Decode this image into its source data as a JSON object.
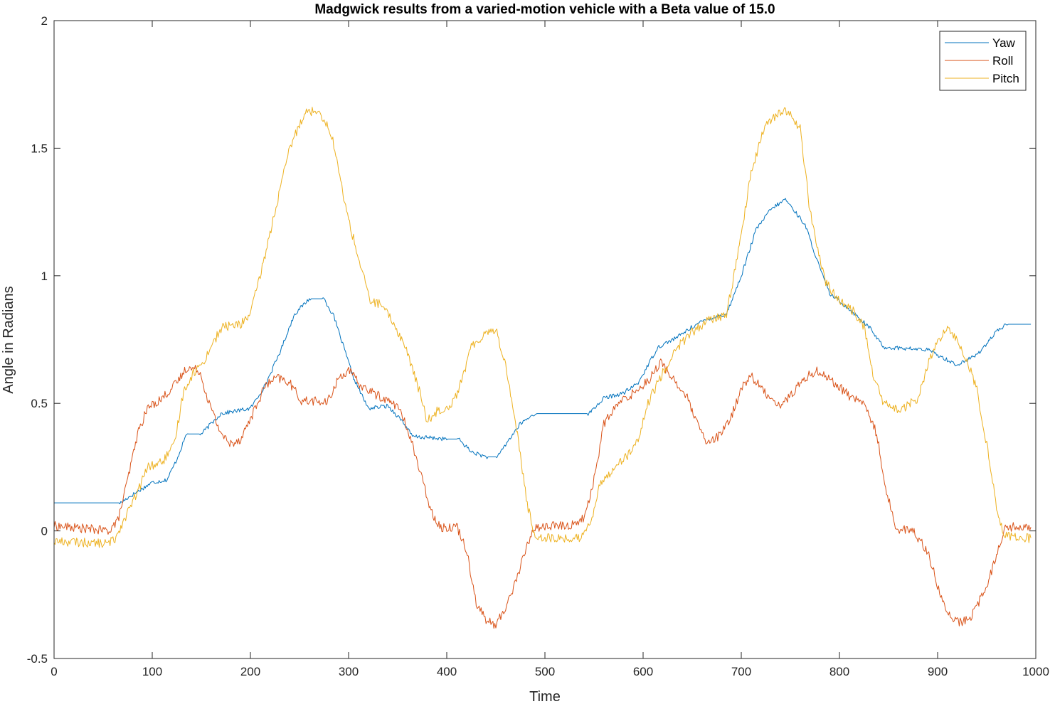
{
  "chart_data": {
    "type": "line",
    "title": "Madgwick results from a varied-motion vehicle with a Beta value of 15.0",
    "xlabel": "Time",
    "ylabel": "Angle in Radians",
    "xlim": [
      0,
      1000
    ],
    "ylim": [
      -0.5,
      2
    ],
    "xticks": [
      0,
      100,
      200,
      300,
      400,
      500,
      600,
      700,
      800,
      900,
      1000
    ],
    "yticks": [
      -0.5,
      0,
      0.5,
      1,
      1.5,
      2
    ],
    "ytick_labels": [
      "-0.5",
      "0",
      "0.5",
      "1",
      "1.5",
      "2"
    ],
    "legend_position": "top-right",
    "series": [
      {
        "name": "Yaw",
        "color": "#0072BD",
        "noise": 0.008,
        "points": [
          [
            0,
            0.11
          ],
          [
            68,
            0.11
          ],
          [
            75,
            0.13
          ],
          [
            100,
            0.19
          ],
          [
            115,
            0.2
          ],
          [
            125,
            0.28
          ],
          [
            135,
            0.38
          ],
          [
            150,
            0.38
          ],
          [
            170,
            0.46
          ],
          [
            200,
            0.48
          ],
          [
            215,
            0.57
          ],
          [
            230,
            0.7
          ],
          [
            245,
            0.85
          ],
          [
            260,
            0.91
          ],
          [
            275,
            0.91
          ],
          [
            285,
            0.84
          ],
          [
            295,
            0.72
          ],
          [
            305,
            0.6
          ],
          [
            320,
            0.48
          ],
          [
            340,
            0.49
          ],
          [
            355,
            0.43
          ],
          [
            365,
            0.37
          ],
          [
            400,
            0.36
          ],
          [
            412,
            0.36
          ],
          [
            425,
            0.31
          ],
          [
            440,
            0.29
          ],
          [
            452,
            0.29
          ],
          [
            462,
            0.35
          ],
          [
            475,
            0.42
          ],
          [
            490,
            0.46
          ],
          [
            545,
            0.46
          ],
          [
            560,
            0.52
          ],
          [
            580,
            0.54
          ],
          [
            595,
            0.58
          ],
          [
            615,
            0.72
          ],
          [
            635,
            0.76
          ],
          [
            650,
            0.8
          ],
          [
            665,
            0.83
          ],
          [
            685,
            0.85
          ],
          [
            700,
            1.0
          ],
          [
            715,
            1.18
          ],
          [
            730,
            1.26
          ],
          [
            745,
            1.3
          ],
          [
            765,
            1.2
          ],
          [
            780,
            1.03
          ],
          [
            790,
            0.93
          ],
          [
            810,
            0.87
          ],
          [
            830,
            0.8
          ],
          [
            845,
            0.72
          ],
          [
            890,
            0.71
          ],
          [
            905,
            0.68
          ],
          [
            920,
            0.65
          ],
          [
            940,
            0.69
          ],
          [
            960,
            0.78
          ],
          [
            970,
            0.81
          ],
          [
            995,
            0.81
          ]
        ]
      },
      {
        "name": "Roll",
        "color": "#D95319",
        "noise": 0.018,
        "points": [
          [
            0,
            0.02
          ],
          [
            30,
            0.01
          ],
          [
            55,
            0.0
          ],
          [
            65,
            0.04
          ],
          [
            75,
            0.2
          ],
          [
            85,
            0.38
          ],
          [
            95,
            0.48
          ],
          [
            110,
            0.52
          ],
          [
            125,
            0.58
          ],
          [
            135,
            0.64
          ],
          [
            148,
            0.63
          ],
          [
            158,
            0.5
          ],
          [
            168,
            0.4
          ],
          [
            178,
            0.34
          ],
          [
            190,
            0.36
          ],
          [
            205,
            0.48
          ],
          [
            215,
            0.57
          ],
          [
            228,
            0.6
          ],
          [
            240,
            0.58
          ],
          [
            252,
            0.51
          ],
          [
            265,
            0.51
          ],
          [
            278,
            0.5
          ],
          [
            290,
            0.6
          ],
          [
            300,
            0.63
          ],
          [
            312,
            0.57
          ],
          [
            330,
            0.53
          ],
          [
            350,
            0.49
          ],
          [
            362,
            0.38
          ],
          [
            375,
            0.2
          ],
          [
            385,
            0.07
          ],
          [
            395,
            0.01
          ],
          [
            410,
            0.02
          ],
          [
            420,
            -0.07
          ],
          [
            430,
            -0.28
          ],
          [
            440,
            -0.35
          ],
          [
            450,
            -0.37
          ],
          [
            460,
            -0.3
          ],
          [
            470,
            -0.2
          ],
          [
            480,
            -0.08
          ],
          [
            488,
            0.01
          ],
          [
            505,
            0.02
          ],
          [
            525,
            0.02
          ],
          [
            540,
            0.05
          ],
          [
            550,
            0.2
          ],
          [
            560,
            0.42
          ],
          [
            575,
            0.5
          ],
          [
            590,
            0.54
          ],
          [
            605,
            0.59
          ],
          [
            618,
            0.66
          ],
          [
            630,
            0.6
          ],
          [
            645,
            0.52
          ],
          [
            655,
            0.42
          ],
          [
            665,
            0.34
          ],
          [
            680,
            0.38
          ],
          [
            690,
            0.45
          ],
          [
            700,
            0.56
          ],
          [
            710,
            0.61
          ],
          [
            722,
            0.55
          ],
          [
            740,
            0.49
          ],
          [
            750,
            0.53
          ],
          [
            765,
            0.6
          ],
          [
            778,
            0.63
          ],
          [
            795,
            0.58
          ],
          [
            810,
            0.53
          ],
          [
            825,
            0.5
          ],
          [
            838,
            0.38
          ],
          [
            848,
            0.15
          ],
          [
            858,
            0.01
          ],
          [
            875,
            0.0
          ],
          [
            890,
            -0.08
          ],
          [
            905,
            -0.28
          ],
          [
            915,
            -0.35
          ],
          [
            925,
            -0.36
          ],
          [
            935,
            -0.33
          ],
          [
            950,
            -0.22
          ],
          [
            960,
            -0.09
          ],
          [
            968,
            0.01
          ],
          [
            985,
            0.02
          ],
          [
            995,
            0.01
          ]
        ]
      },
      {
        "name": "Pitch",
        "color": "#EDB120",
        "noise": 0.018,
        "points": [
          [
            0,
            -0.04
          ],
          [
            55,
            -0.05
          ],
          [
            62,
            -0.03
          ],
          [
            72,
            0.05
          ],
          [
            85,
            0.15
          ],
          [
            95,
            0.25
          ],
          [
            110,
            0.27
          ],
          [
            122,
            0.33
          ],
          [
            132,
            0.55
          ],
          [
            142,
            0.62
          ],
          [
            152,
            0.66
          ],
          [
            162,
            0.74
          ],
          [
            172,
            0.8
          ],
          [
            190,
            0.81
          ],
          [
            200,
            0.85
          ],
          [
            210,
            1.0
          ],
          [
            225,
            1.25
          ],
          [
            240,
            1.5
          ],
          [
            255,
            1.64
          ],
          [
            270,
            1.65
          ],
          [
            283,
            1.55
          ],
          [
            298,
            1.25
          ],
          [
            308,
            1.1
          ],
          [
            322,
            0.9
          ],
          [
            332,
            0.89
          ],
          [
            345,
            0.82
          ],
          [
            358,
            0.72
          ],
          [
            372,
            0.55
          ],
          [
            380,
            0.43
          ],
          [
            390,
            0.47
          ],
          [
            403,
            0.49
          ],
          [
            412,
            0.55
          ],
          [
            425,
            0.72
          ],
          [
            440,
            0.78
          ],
          [
            450,
            0.79
          ],
          [
            460,
            0.65
          ],
          [
            472,
            0.38
          ],
          [
            482,
            0.1
          ],
          [
            490,
            -0.02
          ],
          [
            510,
            -0.03
          ],
          [
            535,
            -0.03
          ],
          [
            548,
            0.05
          ],
          [
            555,
            0.17
          ],
          [
            570,
            0.25
          ],
          [
            585,
            0.3
          ],
          [
            595,
            0.35
          ],
          [
            605,
            0.5
          ],
          [
            620,
            0.62
          ],
          [
            635,
            0.72
          ],
          [
            650,
            0.78
          ],
          [
            665,
            0.82
          ],
          [
            685,
            0.85
          ],
          [
            695,
            1.05
          ],
          [
            710,
            1.4
          ],
          [
            725,
            1.6
          ],
          [
            745,
            1.65
          ],
          [
            760,
            1.58
          ],
          [
            770,
            1.25
          ],
          [
            785,
            0.98
          ],
          [
            800,
            0.9
          ],
          [
            815,
            0.86
          ],
          [
            825,
            0.8
          ],
          [
            835,
            0.6
          ],
          [
            845,
            0.5
          ],
          [
            862,
            0.47
          ],
          [
            880,
            0.52
          ],
          [
            890,
            0.65
          ],
          [
            900,
            0.74
          ],
          [
            910,
            0.79
          ],
          [
            920,
            0.75
          ],
          [
            930,
            0.67
          ],
          [
            940,
            0.55
          ],
          [
            952,
            0.3
          ],
          [
            962,
            0.05
          ],
          [
            968,
            -0.02
          ],
          [
            995,
            -0.03
          ]
        ]
      }
    ]
  }
}
